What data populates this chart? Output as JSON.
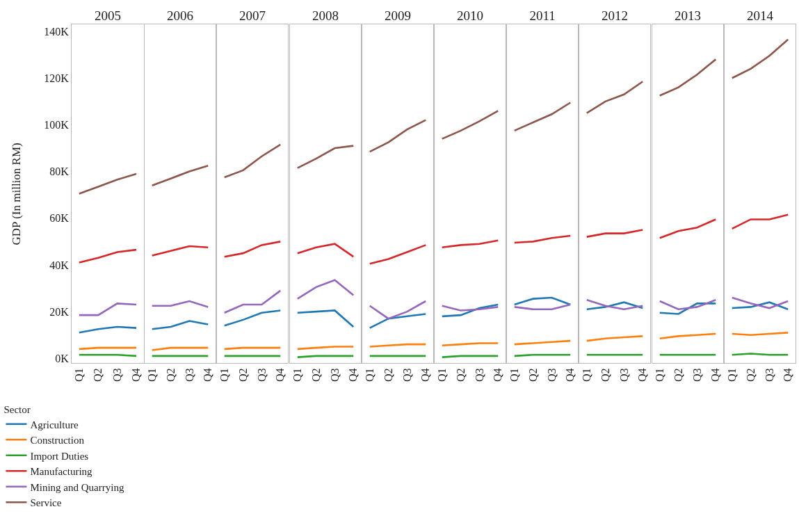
{
  "chart_data": [
    {
      "type": "line",
      "title": "2005",
      "ylabel": "GDP (In million RM)",
      "legend_title": "Sector",
      "legend": "bottom left",
      "grid": false,
      "marker": "none",
      "line_style": "solid",
      "categories": [
        "Q1",
        "Q2",
        "Q3",
        "Q4"
      ],
      "ylim": [
        -2,
        143
      ],
      "yticks": [
        {
          "value": 0,
          "label": "0K"
        },
        {
          "value": 20,
          "label": "20K"
        },
        {
          "value": 40,
          "label": "40K"
        },
        {
          "value": 60,
          "label": "60K"
        },
        {
          "value": 80,
          "label": "80K"
        },
        {
          "value": 100,
          "label": "100K"
        },
        {
          "value": 120,
          "label": "120K"
        },
        {
          "value": 140,
          "label": "140K"
        }
      ],
      "series": [
        {
          "name": "Agriculture",
          "color": "#1f77b4",
          "values": [
            11,
            12.5,
            13.5,
            13
          ]
        },
        {
          "name": "Construction",
          "color": "#ff7f0e",
          "values": [
            4,
            4.5,
            4.5,
            4.5
          ]
        },
        {
          "name": "Import Duties",
          "color": "#2ca02c",
          "values": [
            1.5,
            1.5,
            1.5,
            1
          ]
        },
        {
          "name": "Manufacturing",
          "color": "#d62728",
          "values": [
            41,
            43,
            45.5,
            46.5
          ]
        },
        {
          "name": "Mining and Quarrying",
          "color": "#9467bd",
          "values": [
            18.5,
            18.5,
            23.5,
            23
          ]
        },
        {
          "name": "Service",
          "color": "#8c564b",
          "values": [
            70.5,
            73.5,
            76.5,
            79
          ]
        }
      ]
    },
    {
      "type": "line",
      "title": "2006",
      "tick_labels": "x",
      "grid": false,
      "marker": "none",
      "line_style": "solid",
      "categories": [
        "Q1",
        "Q2",
        "Q3",
        "Q4"
      ],
      "ylim": [
        -2,
        143
      ],
      "series": [
        {
          "color": "#1f77b4",
          "values": [
            12.5,
            13.5,
            16,
            14.5
          ]
        },
        {
          "color": "#ff7f0e",
          "values": [
            3.5,
            4.5,
            4.5,
            4.5
          ]
        },
        {
          "color": "#2ca02c",
          "values": [
            1,
            1,
            1,
            1
          ]
        },
        {
          "color": "#d62728",
          "values": [
            44,
            46,
            48,
            47.5
          ]
        },
        {
          "color": "#9467bd",
          "values": [
            22.5,
            22.5,
            24.5,
            22
          ]
        },
        {
          "color": "#8c564b",
          "values": [
            74,
            77,
            80,
            82.5
          ]
        }
      ]
    },
    {
      "type": "line",
      "title": "2007",
      "tick_labels": "x",
      "grid": false,
      "marker": "none",
      "line_style": "solid",
      "categories": [
        "Q1",
        "Q2",
        "Q3",
        "Q4"
      ],
      "ylim": [
        -2,
        143
      ],
      "series": [
        {
          "color": "#1f77b4",
          "values": [
            14,
            16.5,
            19.5,
            20.5
          ]
        },
        {
          "color": "#ff7f0e",
          "values": [
            4,
            4.5,
            4.5,
            4.5
          ]
        },
        {
          "color": "#2ca02c",
          "values": [
            1,
            1,
            1,
            1
          ]
        },
        {
          "color": "#d62728",
          "values": [
            43.5,
            45,
            48.5,
            50
          ]
        },
        {
          "color": "#9467bd",
          "values": [
            19.5,
            23,
            23,
            29
          ]
        },
        {
          "color": "#8c564b",
          "values": [
            77.5,
            80.5,
            86.5,
            91.5
          ]
        }
      ]
    },
    {
      "type": "line",
      "title": "2008",
      "tick_labels": "x",
      "grid": false,
      "marker": "none",
      "line_style": "solid",
      "categories": [
        "Q1",
        "Q2",
        "Q3",
        "Q4"
      ],
      "ylim": [
        -2,
        143
      ],
      "series": [
        {
          "color": "#1f77b4",
          "values": [
            19.5,
            20,
            20.5,
            13.5
          ]
        },
        {
          "color": "#ff7f0e",
          "values": [
            4,
            4.5,
            5,
            5
          ]
        },
        {
          "color": "#2ca02c",
          "values": [
            0.5,
            1,
            1,
            1
          ]
        },
        {
          "color": "#d62728",
          "values": [
            45,
            47.5,
            49,
            43.5
          ]
        },
        {
          "color": "#9467bd",
          "values": [
            25.5,
            30.5,
            33.5,
            27
          ]
        },
        {
          "color": "#8c564b",
          "values": [
            81.5,
            85.5,
            90,
            91
          ]
        }
      ]
    },
    {
      "type": "line",
      "title": "2009",
      "tick_labels": "x",
      "grid": false,
      "marker": "none",
      "line_style": "solid",
      "categories": [
        "Q1",
        "Q2",
        "Q3",
        "Q4"
      ],
      "ylim": [
        -2,
        143
      ],
      "series": [
        {
          "color": "#1f77b4",
          "values": [
            13,
            17,
            18,
            19
          ]
        },
        {
          "color": "#ff7f0e",
          "values": [
            5,
            5.5,
            6,
            6
          ]
        },
        {
          "color": "#2ca02c",
          "values": [
            1,
            1,
            1,
            1
          ]
        },
        {
          "color": "#d62728",
          "values": [
            40.5,
            42.5,
            45.5,
            48.5
          ]
        },
        {
          "color": "#9467bd",
          "values": [
            22.5,
            17,
            20,
            24.5
          ]
        },
        {
          "color": "#8c564b",
          "values": [
            88.5,
            92.5,
            98,
            102
          ]
        }
      ]
    },
    {
      "type": "line",
      "title": "2010",
      "tick_labels": "x",
      "grid": false,
      "marker": "none",
      "line_style": "solid",
      "categories": [
        "Q1",
        "Q2",
        "Q3",
        "Q4"
      ],
      "ylim": [
        -2,
        143
      ],
      "series": [
        {
          "color": "#1f77b4",
          "values": [
            18,
            18.5,
            21.5,
            23
          ]
        },
        {
          "color": "#ff7f0e",
          "values": [
            5.5,
            6,
            6.5,
            6.5
          ]
        },
        {
          "color": "#2ca02c",
          "values": [
            0.5,
            1,
            1,
            1
          ]
        },
        {
          "color": "#d62728",
          "values": [
            47.5,
            48.5,
            49,
            50.5
          ]
        },
        {
          "color": "#9467bd",
          "values": [
            22.5,
            20.5,
            21,
            22
          ]
        },
        {
          "color": "#8c564b",
          "values": [
            94,
            97.5,
            101.5,
            106
          ]
        }
      ]
    },
    {
      "type": "line",
      "title": "2011",
      "tick_labels": "x",
      "grid": false,
      "marker": "none",
      "line_style": "solid",
      "categories": [
        "Q1",
        "Q2",
        "Q3",
        "Q4"
      ],
      "ylim": [
        -2,
        143
      ],
      "series": [
        {
          "color": "#1f77b4",
          "values": [
            23,
            25.5,
            26,
            23
          ]
        },
        {
          "color": "#ff7f0e",
          "values": [
            6,
            6.5,
            7,
            7.5
          ]
        },
        {
          "color": "#2ca02c",
          "values": [
            1,
            1.5,
            1.5,
            1.5
          ]
        },
        {
          "color": "#d62728",
          "values": [
            49.5,
            50,
            51.5,
            52.5
          ]
        },
        {
          "color": "#9467bd",
          "values": [
            22,
            21,
            21,
            23
          ]
        },
        {
          "color": "#8c564b",
          "values": [
            97.5,
            101,
            104.5,
            109.5
          ]
        }
      ]
    },
    {
      "type": "line",
      "title": "2012",
      "tick_labels": "x",
      "grid": false,
      "marker": "none",
      "line_style": "solid",
      "categories": [
        "Q1",
        "Q2",
        "Q3",
        "Q4"
      ],
      "ylim": [
        -2,
        143
      ],
      "series": [
        {
          "color": "#1f77b4",
          "values": [
            21,
            22,
            24,
            21.5
          ]
        },
        {
          "color": "#ff7f0e",
          "values": [
            7.5,
            8.5,
            9,
            9.5
          ]
        },
        {
          "color": "#2ca02c",
          "values": [
            1.5,
            1.5,
            1.5,
            1.5
          ]
        },
        {
          "color": "#d62728",
          "values": [
            52,
            53.5,
            53.5,
            55
          ]
        },
        {
          "color": "#9467bd",
          "values": [
            25,
            22.5,
            21,
            22.5
          ]
        },
        {
          "color": "#8c564b",
          "values": [
            105,
            110,
            113,
            118.5
          ]
        }
      ]
    },
    {
      "type": "line",
      "title": "2013",
      "tick_labels": "x",
      "grid": false,
      "marker": "none",
      "line_style": "solid",
      "categories": [
        "Q1",
        "Q2",
        "Q3",
        "Q4"
      ],
      "ylim": [
        -2,
        143
      ],
      "series": [
        {
          "color": "#1f77b4",
          "values": [
            19.5,
            19,
            23.5,
            23.5
          ]
        },
        {
          "color": "#ff7f0e",
          "values": [
            8.5,
            9.5,
            10,
            10.5
          ]
        },
        {
          "color": "#2ca02c",
          "values": [
            1.5,
            1.5,
            1.5,
            1.5
          ]
        },
        {
          "color": "#d62728",
          "values": [
            51.5,
            54.5,
            56,
            59.5
          ]
        },
        {
          "color": "#9467bd",
          "values": [
            24.5,
            21,
            22,
            25
          ]
        },
        {
          "color": "#8c564b",
          "values": [
            112.5,
            116,
            121.5,
            128
          ]
        }
      ]
    },
    {
      "type": "line",
      "title": "2014",
      "tick_labels": "x",
      "grid": false,
      "marker": "none",
      "line_style": "solid",
      "categories": [
        "Q1",
        "Q2",
        "Q3",
        "Q4"
      ],
      "ylim": [
        -2,
        143
      ],
      "series": [
        {
          "color": "#1f77b4",
          "values": [
            21.5,
            22,
            24,
            21
          ]
        },
        {
          "color": "#ff7f0e",
          "values": [
            10.5,
            10,
            10.5,
            11
          ]
        },
        {
          "color": "#2ca02c",
          "values": [
            1.5,
            2,
            1.5,
            1.5
          ]
        },
        {
          "color": "#d62728",
          "values": [
            55.5,
            59.5,
            59.5,
            61.5
          ]
        },
        {
          "color": "#9467bd",
          "values": [
            26,
            23.5,
            21.5,
            24.5
          ]
        },
        {
          "color": "#8c564b",
          "values": [
            120,
            124,
            129.5,
            136.5
          ]
        }
      ]
    }
  ]
}
